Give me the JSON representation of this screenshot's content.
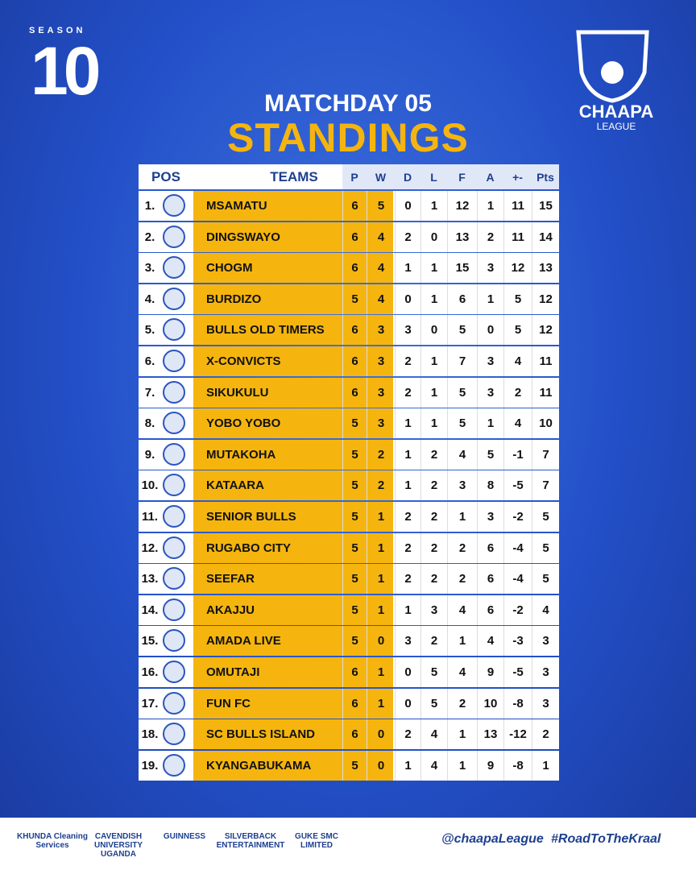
{
  "header": {
    "season_label": "SEASON",
    "season_number": "10",
    "league": "CHAAPA",
    "league_sub": "LEAGUE",
    "matchday": "MATCHDAY 05",
    "title": "STANDINGS"
  },
  "table": {
    "columns": [
      "POS",
      "TEAMS",
      "P",
      "W",
      "D",
      "L",
      "F",
      "A",
      "+-",
      "Pts"
    ],
    "rows": [
      [
        "1.",
        "MSAMATU",
        6,
        5,
        0,
        1,
        12,
        1,
        11,
        15
      ],
      [
        "2.",
        "DINGSWAYO",
        6,
        4,
        2,
        0,
        13,
        2,
        11,
        14
      ],
      [
        "3.",
        "CHOGM",
        6,
        4,
        1,
        1,
        15,
        3,
        12,
        13
      ],
      [
        "4.",
        "BURDIZO",
        5,
        4,
        0,
        1,
        6,
        1,
        5,
        12
      ],
      [
        "5.",
        "BULLS OLD TIMERS",
        6,
        3,
        3,
        0,
        5,
        0,
        5,
        12
      ],
      [
        "6.",
        "X-CONVICTS",
        6,
        3,
        2,
        1,
        7,
        3,
        4,
        11
      ],
      [
        "7.",
        "SIKUKULU",
        6,
        3,
        2,
        1,
        5,
        3,
        2,
        11
      ],
      [
        "8.",
        "YOBO YOBO",
        5,
        3,
        1,
        1,
        5,
        1,
        4,
        10
      ],
      [
        "9.",
        "MUTAKOHA",
        5,
        2,
        1,
        2,
        4,
        5,
        -1,
        7
      ],
      [
        "10.",
        "KATAARA",
        5,
        2,
        1,
        2,
        3,
        8,
        -5,
        7
      ],
      [
        "11.",
        "SENIOR BULLS",
        5,
        1,
        2,
        2,
        1,
        3,
        -2,
        5
      ],
      [
        "12.",
        "RUGABO CITY",
        5,
        1,
        2,
        2,
        2,
        6,
        -4,
        5
      ],
      [
        "13.",
        "SEEFAR",
        5,
        1,
        2,
        2,
        2,
        6,
        -4,
        5
      ],
      [
        "14.",
        "AKAJJU",
        5,
        1,
        1,
        3,
        4,
        6,
        -2,
        4
      ],
      [
        "15.",
        "AMADA LIVE",
        5,
        0,
        3,
        2,
        1,
        4,
        -3,
        3
      ],
      [
        "16.",
        "OMUTAJI",
        6,
        1,
        0,
        5,
        4,
        9,
        -5,
        3
      ],
      [
        "17.",
        "FUN FC",
        6,
        1,
        0,
        5,
        2,
        10,
        -8,
        3
      ],
      [
        "18.",
        "SC BULLS ISLAND",
        6,
        0,
        2,
        4,
        1,
        13,
        -12,
        2
      ],
      [
        "19.",
        "KYANGABUKAMA",
        5,
        0,
        1,
        4,
        1,
        9,
        -8,
        1
      ]
    ]
  },
  "footer": {
    "sponsors": [
      "KHUNDA Cleaning Services",
      "CAVENDISH UNIVERSITY UGANDA",
      "GUINNESS",
      "SILVERBACK ENTERTAINMENT",
      "GUKE SMC LIMITED"
    ],
    "handle": "@chaapaLeague",
    "hashtag": "#RoadToTheKraal"
  }
}
